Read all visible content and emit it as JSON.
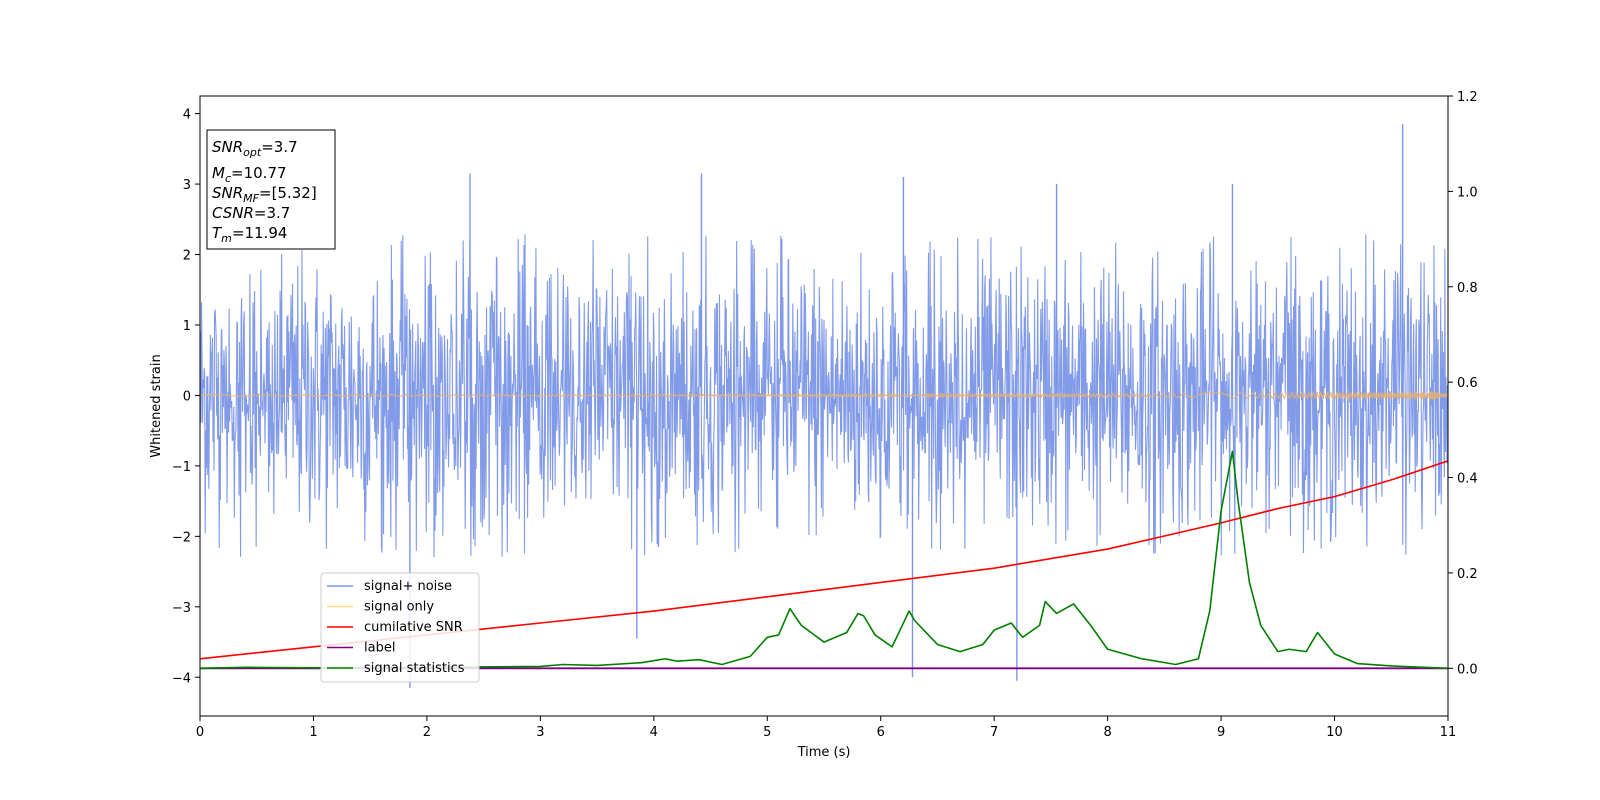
{
  "chart_data": {
    "type": "line",
    "xlabel": "Time (s)",
    "ylabel": "Whitened strain",
    "xlim": [
      0,
      11
    ],
    "ylim": [
      -4.55,
      4.25
    ],
    "y2lim": [
      -0.1,
      1.2
    ],
    "x_ticks": [
      "0",
      "1",
      "2",
      "3",
      "4",
      "5",
      "6",
      "7",
      "8",
      "9",
      "10",
      "11"
    ],
    "y_ticks": [
      "4",
      "3",
      "2",
      "1",
      "0",
      "−1",
      "−2",
      "−3",
      "−4"
    ],
    "y2_ticks": [
      "1.2",
      "1.0",
      "0.8",
      "0.6",
      "0.4",
      "0.2",
      "0.0"
    ],
    "annotation": {
      "snr_opt": {
        "sym": "SNR",
        "sub": "opt",
        "value": "=3.7"
      },
      "mc": {
        "sym": "M",
        "sub": "c",
        "value": "=10.77"
      },
      "snr_mf": {
        "sym": "SNR",
        "sub": "MF",
        "value": "=[5.32]"
      },
      "csnr": {
        "sym": "CSNR",
        "value": "=3.7"
      },
      "tm": {
        "sym": "T",
        "sub": "m",
        "value": "=11.94"
      }
    },
    "legend": {
      "placement": "lower-left",
      "items": [
        {
          "label": "signal+ noise",
          "color": "#7b96e8"
        },
        {
          "label": "signal only",
          "color": "#ffd88a"
        },
        {
          "label": "cumilative SNR",
          "color": "#ff0000"
        },
        {
          "label": "label",
          "color": "#800080"
        },
        {
          "label": "signal statistics",
          "color": "#008000"
        }
      ]
    },
    "series": [
      {
        "name": "signal+ noise",
        "axis": "left",
        "style": "noise band, approx. ±1 sigma with spikes to about ±4",
        "band_min": -2.3,
        "band_max": 2.3,
        "spikes": [
          [
            1.85,
            -4.15
          ],
          [
            6.28,
            -4.0
          ],
          [
            7.2,
            -4.05
          ],
          [
            10.6,
            3.85
          ],
          [
            2.38,
            3.15
          ],
          [
            4.42,
            3.15
          ],
          [
            6.2,
            3.1
          ],
          [
            9.1,
            3.0
          ],
          [
            7.55,
            3.0
          ],
          [
            3.85,
            -3.45
          ]
        ]
      },
      {
        "name": "signal only",
        "axis": "left",
        "style": "chirp oscillation, amplitude growing from ~0.01 to ~0.06",
        "amp_start": 0.01,
        "amp_end": 0.06
      },
      {
        "name": "cumilative SNR",
        "axis": "right",
        "x": [
          0,
          1,
          2,
          3,
          4,
          5,
          6,
          7,
          8,
          9,
          9.5,
          10,
          10.5,
          11
        ],
        "y": [
          0.02,
          0.045,
          0.07,
          0.095,
          0.12,
          0.15,
          0.18,
          0.21,
          0.25,
          0.305,
          0.335,
          0.36,
          0.395,
          0.435
        ]
      },
      {
        "name": "label",
        "axis": "right",
        "x": [
          0,
          11
        ],
        "y": [
          0.0,
          0.0
        ]
      },
      {
        "name": "signal statistics",
        "axis": "right",
        "x": [
          0,
          0.4,
          1,
          2,
          3,
          3.2,
          3.5,
          3.9,
          4.1,
          4.2,
          4.4,
          4.6,
          4.85,
          5.0,
          5.1,
          5.2,
          5.3,
          5.5,
          5.7,
          5.8,
          5.85,
          5.95,
          6.1,
          6.25,
          6.3,
          6.5,
          6.7,
          6.9,
          7.0,
          7.15,
          7.25,
          7.4,
          7.45,
          7.55,
          7.7,
          7.85,
          8.0,
          8.3,
          8.6,
          8.8,
          8.9,
          9.0,
          9.1,
          9.15,
          9.25,
          9.35,
          9.5,
          9.6,
          9.75,
          9.85,
          10.0,
          10.2,
          10.5,
          11
        ],
        "y": [
          0.0,
          0.002,
          0.001,
          0.002,
          0.004,
          0.008,
          0.006,
          0.012,
          0.02,
          0.015,
          0.018,
          0.008,
          0.025,
          0.065,
          0.07,
          0.125,
          0.09,
          0.055,
          0.075,
          0.115,
          0.11,
          0.07,
          0.045,
          0.12,
          0.1,
          0.05,
          0.035,
          0.05,
          0.08,
          0.095,
          0.065,
          0.09,
          0.14,
          0.115,
          0.135,
          0.09,
          0.04,
          0.02,
          0.008,
          0.02,
          0.12,
          0.33,
          0.455,
          0.35,
          0.18,
          0.09,
          0.035,
          0.04,
          0.035,
          0.075,
          0.03,
          0.01,
          0.005,
          0.0
        ]
      }
    ]
  }
}
